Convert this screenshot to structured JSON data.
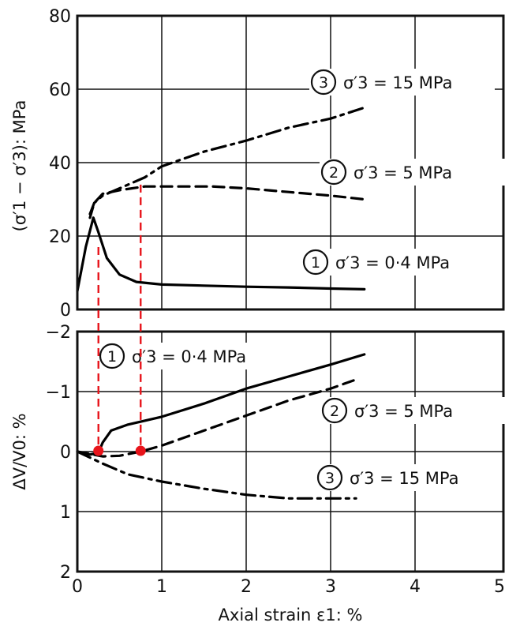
{
  "chart_data": [
    {
      "type": "line",
      "title": "",
      "xlabel": "",
      "ylabel": "(σ′1 − σ′3): MPa",
      "xlim": [
        0,
        5
      ],
      "ylim": [
        0,
        80
      ],
      "x_ticks": [
        "0",
        "1",
        "2",
        "3",
        "4",
        "5"
      ],
      "y_ticks": [
        "0",
        "20",
        "40",
        "60",
        "80"
      ],
      "grid": true,
      "series": [
        {
          "number": "1",
          "name": "σ′3 = 0·4 MPa",
          "style": "solid",
          "points": [
            [
              0.0,
              5
            ],
            [
              0.1,
              17
            ],
            [
              0.19,
              25
            ],
            [
              0.25,
              21
            ],
            [
              0.35,
              14
            ],
            [
              0.5,
              9.5
            ],
            [
              0.7,
              7.5
            ],
            [
              1.0,
              6.8
            ],
            [
              1.5,
              6.5
            ],
            [
              2.0,
              6.2
            ],
            [
              2.5,
              6.0
            ],
            [
              3.0,
              5.7
            ],
            [
              3.4,
              5.5
            ]
          ]
        },
        {
          "number": "2",
          "name": "σ′3 = 5 MPa",
          "style": "dashed",
          "points": [
            [
              0.15,
              25
            ],
            [
              0.2,
              29
            ],
            [
              0.3,
              31.5
            ],
            [
              0.5,
              32.5
            ],
            [
              0.8,
              33.5
            ],
            [
              1.2,
              33.5
            ],
            [
              1.6,
              33.5
            ],
            [
              2.0,
              33.0
            ],
            [
              2.5,
              32.0
            ],
            [
              3.0,
              31.0
            ],
            [
              3.4,
              30.0
            ]
          ]
        },
        {
          "number": "3",
          "name": "σ′3 = 15 MPa",
          "style": "dash-dot",
          "points": [
            [
              0.15,
              26
            ],
            [
              0.2,
              29
            ],
            [
              0.3,
              31
            ],
            [
              0.5,
              33
            ],
            [
              0.8,
              36
            ],
            [
              1.0,
              39
            ],
            [
              1.5,
              43
            ],
            [
              2.0,
              46
            ],
            [
              2.5,
              49.5
            ],
            [
              3.0,
              52
            ],
            [
              3.4,
              55
            ]
          ]
        }
      ]
    },
    {
      "type": "line",
      "title": "",
      "xlabel": "Axial strain ε1: %",
      "ylabel": "ΔV/V0: %",
      "xlim": [
        0,
        5
      ],
      "ylim": [
        -2,
        2
      ],
      "y_axis_inverted": true,
      "x_ticks": [
        "0",
        "1",
        "2",
        "3",
        "4",
        "5"
      ],
      "y_ticks": [
        "−2",
        "−1",
        "0",
        "1",
        "2"
      ],
      "grid": true,
      "series": [
        {
          "number": "1",
          "name": "σ′3 = 0·4 MPa",
          "style": "solid",
          "points": [
            [
              0.0,
              0.0
            ],
            [
              0.15,
              0.05
            ],
            [
              0.25,
              0.02
            ],
            [
              0.3,
              -0.15
            ],
            [
              0.4,
              -0.35
            ],
            [
              0.6,
              -0.45
            ],
            [
              1.0,
              -0.58
            ],
            [
              1.5,
              -0.8
            ],
            [
              2.0,
              -1.05
            ],
            [
              2.5,
              -1.25
            ],
            [
              3.0,
              -1.45
            ],
            [
              3.4,
              -1.62
            ]
          ]
        },
        {
          "number": "2",
          "name": "σ′3 = 5 MPa",
          "style": "dashed",
          "points": [
            [
              0.0,
              0.0
            ],
            [
              0.3,
              0.08
            ],
            [
              0.5,
              0.07
            ],
            [
              0.75,
              0.0
            ],
            [
              1.0,
              -0.1
            ],
            [
              1.5,
              -0.35
            ],
            [
              2.0,
              -0.6
            ],
            [
              2.5,
              -0.85
            ],
            [
              3.0,
              -1.05
            ],
            [
              3.3,
              -1.2
            ]
          ]
        },
        {
          "number": "3",
          "name": "σ′3 = 15 MPa",
          "style": "dash-dot",
          "points": [
            [
              0.0,
              0.0
            ],
            [
              0.3,
              0.2
            ],
            [
              0.6,
              0.38
            ],
            [
              1.0,
              0.5
            ],
            [
              1.5,
              0.62
            ],
            [
              2.0,
              0.72
            ],
            [
              2.5,
              0.78
            ],
            [
              3.0,
              0.78
            ],
            [
              3.3,
              0.78
            ]
          ]
        }
      ]
    }
  ],
  "colors": {
    "axis": "#111111",
    "grid": "#111111",
    "marker": "#e8141b"
  },
  "annotation_overlay": {
    "description": "red dashed vertical guide lines with red dot markers",
    "strain_points": [
      0.25,
      0.75
    ]
  }
}
